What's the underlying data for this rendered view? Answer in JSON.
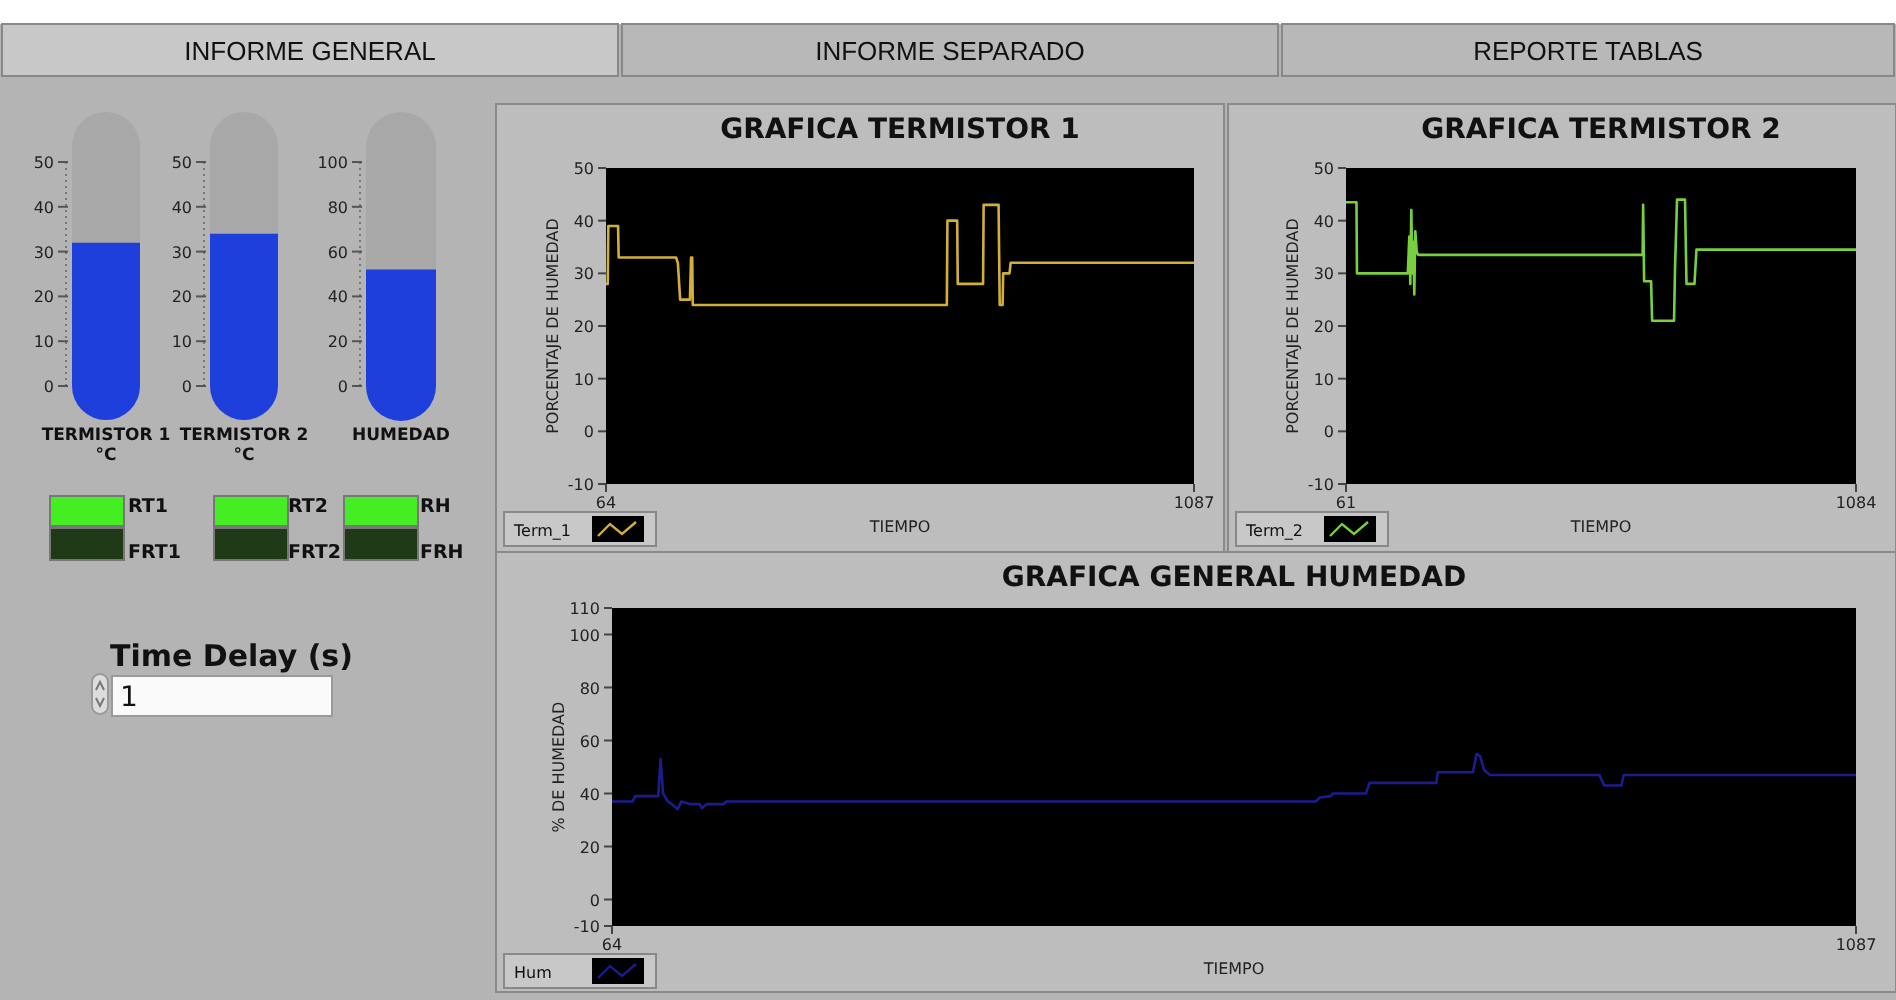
{
  "chart_data": [
    {
      "type": "other",
      "annotations": [
        "INFORME GENERAL",
        "INFORME SEPARADO",
        "REPORTE TABLAS",
        "RT1",
        "FRT1",
        "RT2",
        "FRT2",
        "RH",
        "FRH",
        "Time Delay (s)",
        "1"
      ]
    },
    {
      "type": "bar",
      "categories": [
        "TERMISTOR 1 °C"
      ],
      "values": [
        32
      ],
      "color": "#1f3fdc",
      "ylim": [
        0,
        50
      ],
      "yticks": [
        0,
        10,
        20,
        30,
        40,
        50
      ]
    },
    {
      "type": "bar",
      "categories": [
        "TERMISTOR 2 °C"
      ],
      "values": [
        34
      ],
      "color": "#1f3fdc",
      "ylim": [
        0,
        50
      ],
      "yticks": [
        0,
        10,
        20,
        30,
        40,
        50
      ]
    },
    {
      "type": "bar",
      "categories": [
        "HUMEDAD"
      ],
      "values": [
        52
      ],
      "color": "#1f3fdc",
      "ylim": [
        0,
        100
      ],
      "yticks": [
        0,
        20,
        40,
        60,
        80,
        100
      ]
    },
    {
      "type": "line",
      "title": "GRAFICA TERMISTOR 1",
      "xlabel": "TIEMPO",
      "ylabel": "PORCENTAJE DE HUMEDAD",
      "xlim": [
        64,
        1087
      ],
      "xticks": [
        64,
        1087
      ],
      "ylim": [
        -10,
        50
      ],
      "yticks": [
        -10,
        0,
        10,
        20,
        30,
        40,
        50
      ],
      "legend": "bottom left",
      "series": [
        {
          "name": "Term_1",
          "color": "#d2b038",
          "x": [
            64,
            67,
            68,
            85,
            86,
            186,
            189,
            193,
            210,
            212,
            214,
            215,
            657,
            658,
            675,
            676,
            720,
            721,
            747,
            749,
            754,
            755,
            766,
            768,
            1087
          ],
          "values": [
            28,
            28,
            39,
            39,
            33,
            33,
            32,
            25,
            25,
            33,
            33,
            24,
            24,
            40,
            40,
            28,
            28,
            43,
            43,
            24,
            24,
            30,
            30,
            32,
            32
          ]
        }
      ]
    },
    {
      "type": "line",
      "title": "GRAFICA TERMISTOR 2",
      "xlabel": "TIEMPO",
      "ylabel": "PORCENTAJE DE HUMEDAD",
      "xlim": [
        61,
        1084
      ],
      "xticks": [
        61,
        1084
      ],
      "ylim": [
        -10,
        50
      ],
      "yticks": [
        -10,
        0,
        10,
        20,
        30,
        40,
        50
      ],
      "legend": "bottom left",
      "series": [
        {
          "name": "Term_2",
          "color": "#78d040",
          "x": [
            61,
            82,
            83,
            185,
            188,
            190,
            192,
            194,
            196,
            198,
            200,
            203,
            206,
            656,
            657,
            659,
            673,
            675,
            719,
            721,
            725,
            741,
            744,
            760,
            764,
            1084
          ],
          "values": [
            43.5,
            43.5,
            30,
            30,
            37,
            28,
            42,
            30,
            36,
            26,
            38,
            34,
            33.5,
            33.5,
            43,
            28.5,
            28.5,
            21,
            21,
            31,
            44,
            44,
            28,
            28,
            34.5,
            34.5
          ]
        }
      ]
    },
    {
      "type": "line",
      "title": "GRAFICA GENERAL HUMEDAD",
      "xlabel": "TIEMPO",
      "ylabel": "% DE HUMEDAD",
      "xlim": [
        64,
        1087
      ],
      "xticks": [
        64,
        1087
      ],
      "ylim": [
        -10,
        110
      ],
      "yticks": [
        -10,
        0,
        20,
        40,
        60,
        80,
        100,
        110
      ],
      "legend": "bottom left",
      "series": [
        {
          "name": "Hum",
          "color": "#1c1c90",
          "x": [
            64,
            81,
            83,
            102,
            104,
            106,
            110,
            116,
            118,
            121,
            128,
            136,
            138,
            142,
            156,
            158,
            643,
            646,
            655,
            657,
            684,
            687,
            742,
            743,
            772,
            775,
            778,
            781,
            786,
            876,
            880,
            894,
            896,
            1087
          ],
          "values": [
            37,
            37,
            39,
            39,
            53,
            40,
            37,
            35,
            34,
            37,
            36,
            36,
            34.5,
            36,
            36,
            37,
            37,
            38.5,
            39,
            40,
            40,
            44,
            44,
            48,
            48,
            55,
            54,
            49,
            47,
            47,
            43,
            43,
            47,
            47
          ]
        }
      ]
    }
  ]
}
